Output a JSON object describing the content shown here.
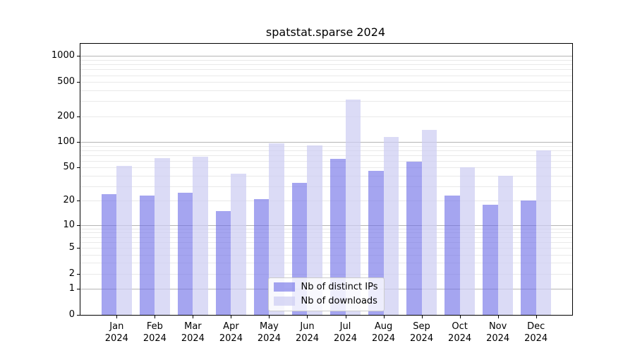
{
  "title": "spatstat.sparse 2024",
  "chart_data": {
    "type": "bar",
    "title": "spatstat.sparse 2024",
    "categories": [
      "Jan 2024",
      "Feb 2024",
      "Mar 2024",
      "Apr 2024",
      "May 2024",
      "Jun 2024",
      "Jul 2024",
      "Aug 2024",
      "Sep 2024",
      "Oct 2024",
      "Nov 2024",
      "Dec 2024"
    ],
    "series": [
      {
        "name": "Nb of distinct IPs",
        "values": [
          24,
          23,
          25,
          15,
          21,
          33,
          64,
          46,
          59,
          23,
          18,
          20
        ],
        "color": "rgba(110,110,230,0.62)"
      },
      {
        "name": "Nb of downloads",
        "values": [
          52,
          65,
          67,
          42,
          96,
          92,
          315,
          115,
          138,
          50,
          40,
          80
        ],
        "color": "rgba(205,205,243,0.72)"
      }
    ],
    "xlabel": "",
    "ylabel": "",
    "yscale": "log1p",
    "ylim": [
      0,
      1390
    ],
    "yticks": [
      0,
      1,
      2,
      5,
      10,
      20,
      50,
      100,
      200,
      500,
      1000
    ],
    "grid": {
      "on": true,
      "major": [
        1,
        10,
        100,
        1000
      ],
      "minor": [
        2,
        3,
        4,
        5,
        6,
        7,
        8,
        9,
        20,
        30,
        40,
        50,
        60,
        70,
        80,
        90,
        200,
        300,
        400,
        500,
        600,
        700,
        800,
        900
      ]
    },
    "legend_position": "lower center",
    "background": "#ffffff",
    "axis_color": "#000000",
    "major_grid_color": "#b4b4b4",
    "minor_grid_color": "#e9e9e9"
  }
}
